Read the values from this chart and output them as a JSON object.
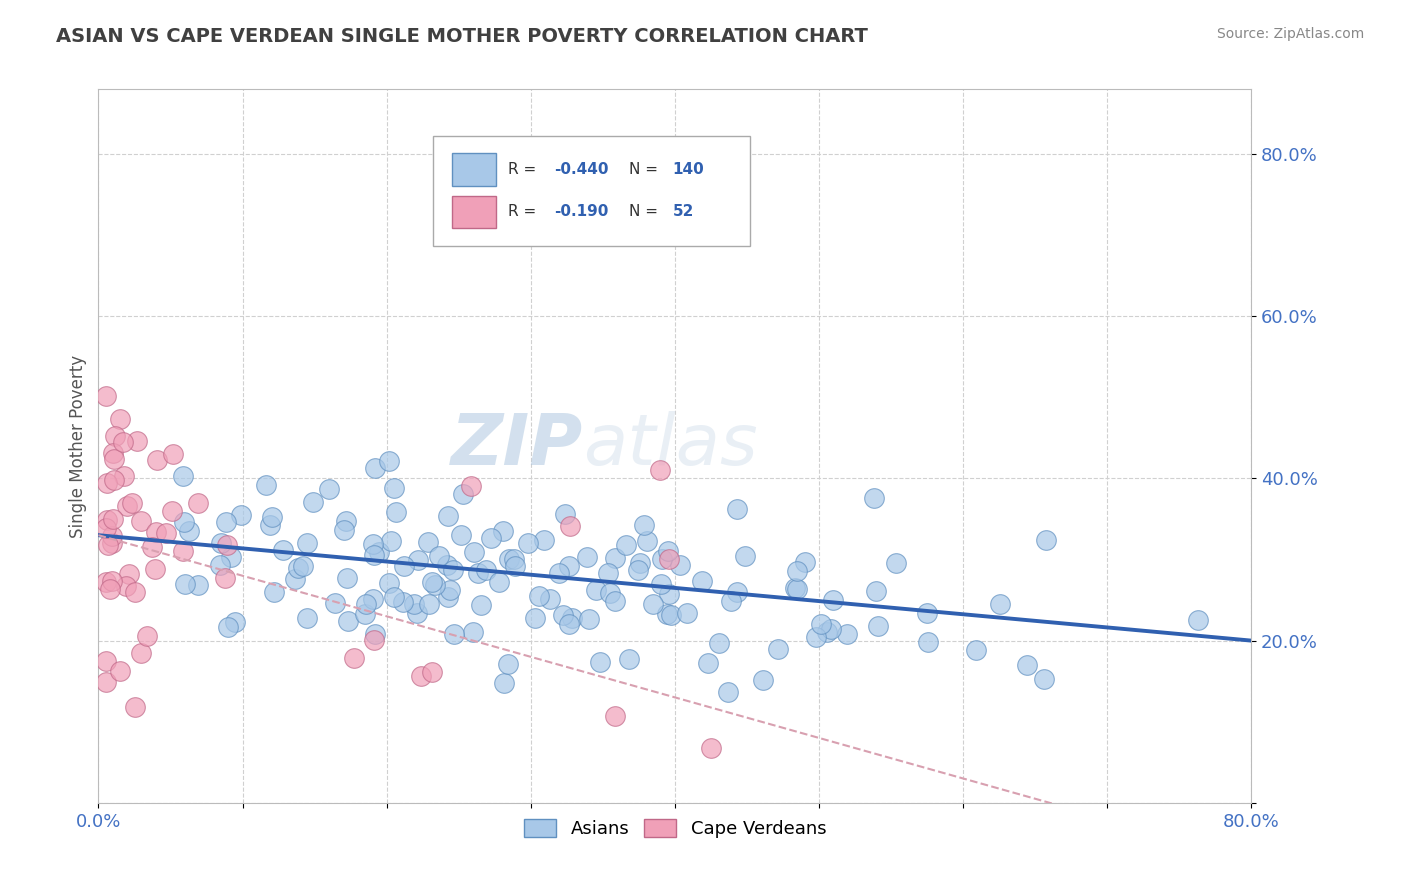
{
  "title": "ASIAN VS CAPE VERDEAN SINGLE MOTHER POVERTY CORRELATION CHART",
  "source": "Source: ZipAtlas.com",
  "ylabel": "Single Mother Poverty",
  "legend_entries": [
    {
      "label": "Asians",
      "R": "-0.440",
      "N": "140",
      "scatter_color": "#a8c8e8",
      "line_color": "#3060b0"
    },
    {
      "label": "Cape Verdeans",
      "R": "-0.190",
      "N": "52",
      "scatter_color": "#f0a0b8",
      "line_color": "#d06080"
    }
  ],
  "watermark_zip": "ZIP",
  "watermark_atlas": "atlas",
  "background_color": "#ffffff",
  "grid_color": "#cccccc",
  "title_color": "#404040",
  "xlim": [
    0.0,
    0.8
  ],
  "ylim": [
    0.0,
    0.88
  ],
  "x_tick_positions": [
    0.0,
    0.1,
    0.2,
    0.3,
    0.4,
    0.5,
    0.6,
    0.7,
    0.8
  ],
  "y_tick_positions": [
    0.0,
    0.2,
    0.4,
    0.6,
    0.8
  ],
  "y_tick_labels": [
    "",
    "20.0%",
    "40.0%",
    "60.0%",
    "80.0%"
  ],
  "x_tick_labels": [
    "0.0%",
    "",
    "",
    "",
    "",
    "",
    "",
    "",
    "80.0%"
  ]
}
